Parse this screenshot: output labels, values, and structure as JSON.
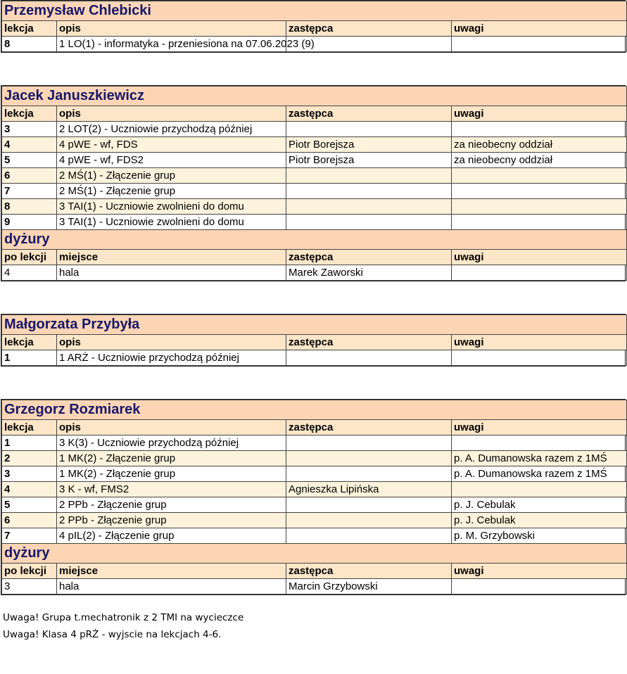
{
  "sections": [
    {
      "name": "Przemysław Chlebicki",
      "header": [
        "lekcja",
        "opis",
        "zastępca",
        "uwagi"
      ],
      "rows": [
        [
          8,
          "1 LO(1) - informatyka - przeniesiona na 07.06.2023 (9)",
          null,
          null
        ]
      ]
    },
    {
      "name": "Jacek Januszkiewicz",
      "header": [
        "lekcja",
        "opis",
        "zastępca",
        "uwagi"
      ],
      "rows": [
        [
          3,
          "2 LOT(2) - Uczniowie przychodzą później",
          null,
          null
        ],
        [
          4,
          "4 pWE - wf, FDS",
          "Piotr Borejsza",
          "za nieobecny oddział"
        ],
        [
          5,
          "4 pWE - wf, FDS2",
          "Piotr Borejsza",
          "za nieobecny oddział"
        ],
        [
          6,
          "2 MŚ(1) - Złączenie grup",
          null,
          null
        ],
        [
          7,
          "2 MŚ(1) - Złączenie grup",
          null,
          null
        ],
        [
          8,
          "3 TAI(1) - Uczniowie zwolnieni do domu",
          null,
          null
        ],
        [
          9,
          "3 TAI(1) - Uczniowie zwolnieni do domu",
          null,
          null
        ]
      ],
      "duty": {
        "title": "dyżury",
        "header": [
          "po lekcji",
          "miejsce",
          "zastępca",
          "uwagi"
        ],
        "rows": [
          [
            4,
            "hala",
            "Marek Zaworski",
            null
          ]
        ]
      }
    },
    {
      "name": "Małgorzata Przybyła",
      "header": [
        "lekcja",
        "opis",
        "zastępca",
        "uwagi"
      ],
      "rows": [
        [
          1,
          "1 ARŻ - Uczniowie przychodzą później",
          null,
          null
        ]
      ]
    },
    {
      "name": "Grzegorz Rozmiarek",
      "header": [
        "lekcja",
        "opis",
        "zastępca",
        "uwagi"
      ],
      "rows": [
        [
          1,
          "3 K(3) - Uczniowie przychodzą później",
          null,
          null
        ],
        [
          2,
          "1 MK(2) - Złączenie grup",
          null,
          "p. A. Dumanowska razem z 1MŚ"
        ],
        [
          3,
          "1 MK(2) - Złączenie grup",
          null,
          "p. A. Dumanowska razem z 1MŚ"
        ],
        [
          4,
          "3 K - wf, FMS2",
          "Agnieszka Lipińska",
          null
        ],
        [
          5,
          "2 PPb - Złączenie grup",
          null,
          "p. J. Cebulak"
        ],
        [
          6,
          "2 PPb - Złączenie grup",
          null,
          "p. J. Cebulak"
        ],
        [
          7,
          "4 pIL(2) - Złączenie grup",
          null,
          "p. M. Grzybowski"
        ]
      ],
      "duty": {
        "title": "dyżury",
        "header": [
          "po lekcji",
          "miejsce",
          "zastępca",
          "uwagi"
        ],
        "rows": [
          [
            3,
            "hala",
            "Marcin Grzybowski",
            null
          ]
        ]
      }
    }
  ],
  "notes": [
    "Uwaga! Grupa t.mechatronik z 2 TMI na wycieczce",
    "Uwaga! Klasa 4 pRŻ - wyjscie na lekcjach 4-6."
  ]
}
